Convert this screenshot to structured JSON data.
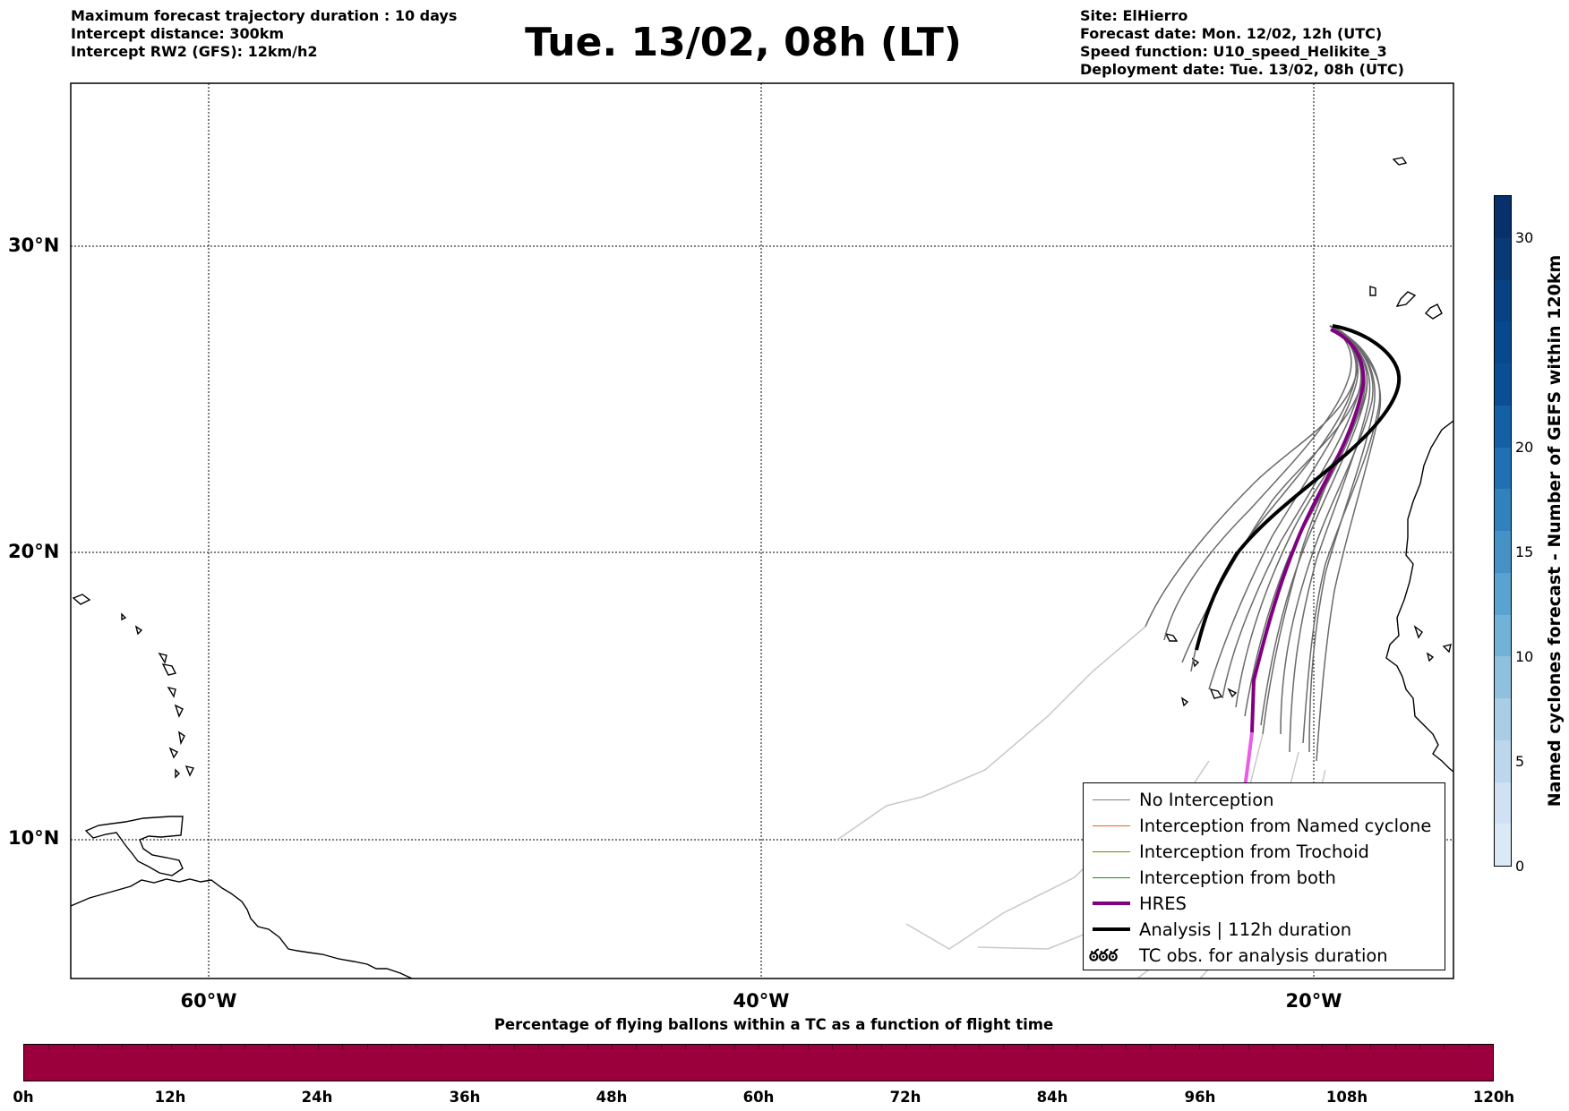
{
  "header_left": {
    "line1": "Maximum forecast trajectory duration : 10 days",
    "line2": "Intercept distance: 300km",
    "line3": "Intercept RW2 (GFS):  12km/h2"
  },
  "title": "Tue. 13/02, 08h (LT)",
  "header_right": {
    "site": "Site: ElHierro",
    "forecast_date": "Forecast date: Mon. 12/02, 12h (UTC)",
    "speed_function": "Speed function: U10_speed_Helikite_3",
    "deployment_date": "Deployment date: Tue. 13/02, 08h (UTC)"
  },
  "map": {
    "lat_labels": [
      "30°N",
      "20°N",
      "10°N"
    ],
    "lon_labels": [
      "60°W",
      "40°W",
      "20°W"
    ],
    "site": {
      "name": "ElHierro",
      "lat": 27.8,
      "lon": -18.0
    },
    "hres_color": "#800080",
    "analysis_color": "#000000",
    "ensemble_color": "#6a6a6a"
  },
  "legend": {
    "items": [
      {
        "label": "No Interception",
        "color": "#808080",
        "style": "thin"
      },
      {
        "label": "Interception from Named cyclone",
        "color": "#ff5a1f",
        "style": "thin"
      },
      {
        "label": "Interception from Trochoid",
        "color": "#808000",
        "style": "thin"
      },
      {
        "label": "Interception from both",
        "color": "#1a8a1a",
        "style": "thin"
      },
      {
        "label": "HRES",
        "color": "#800080",
        "style": "thick"
      },
      {
        "label": "Analysis | 112h duration",
        "color": "#000000",
        "style": "thick"
      },
      {
        "label": "TC obs. for analysis duration",
        "color": "#000000",
        "style": "symbol",
        "symbol": "ఠఠఠ"
      }
    ]
  },
  "colorbar_vertical": {
    "label": "Named cyclones forecast - Number of GEFS within 120km",
    "ticks": [
      "0",
      "5",
      "10",
      "15",
      "20",
      "30"
    ],
    "tick_values": [
      0,
      5,
      10,
      15,
      20,
      30
    ],
    "range": [
      0,
      32
    ]
  },
  "colorbar_horizontal": {
    "title": "Percentage of flying ballons within a TC as a function of flight time",
    "ticks": [
      "0h",
      "12h",
      "24h",
      "36h",
      "48h",
      "60h",
      "72h",
      "84h",
      "96h",
      "108h",
      "120h"
    ],
    "color": "#9c003c"
  }
}
